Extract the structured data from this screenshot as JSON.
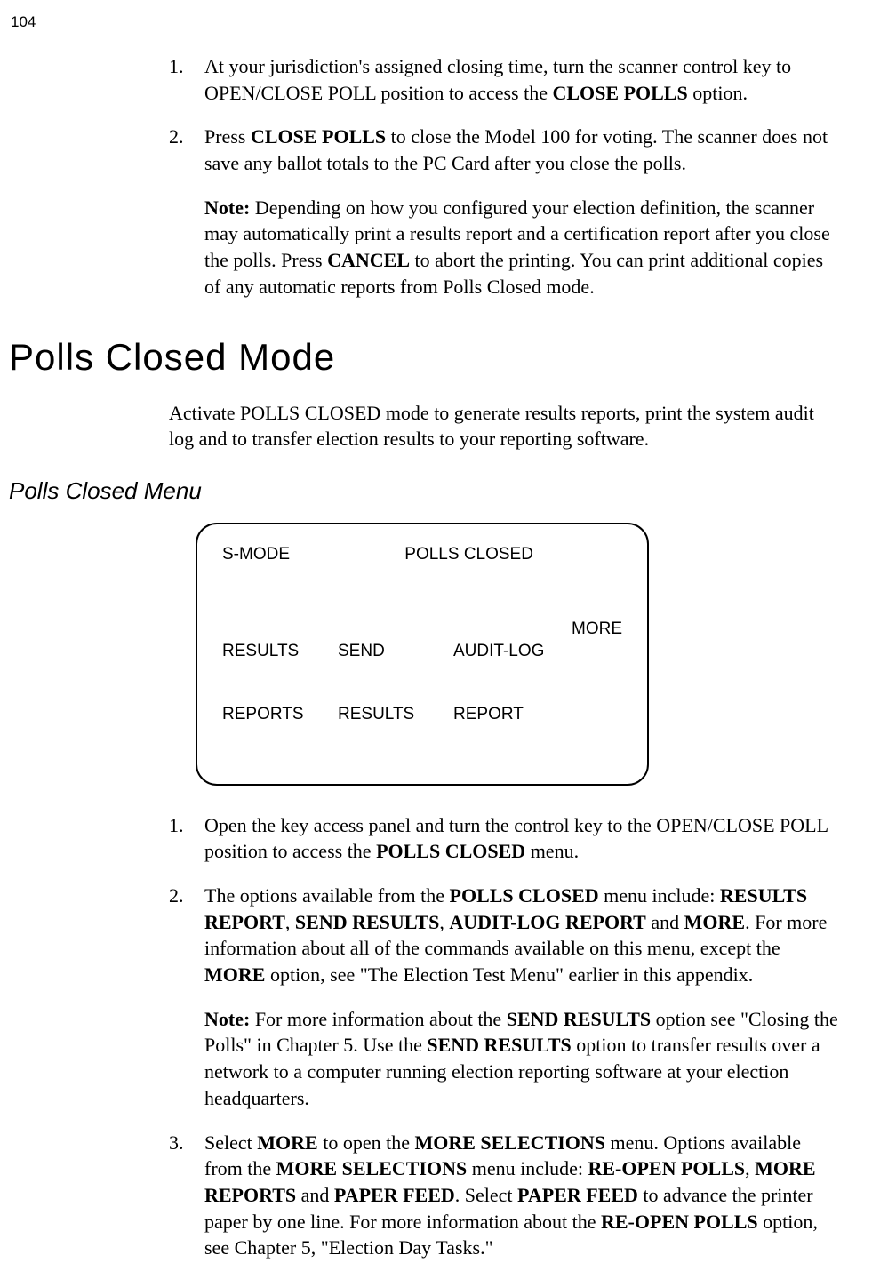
{
  "page_number": "104",
  "list1": {
    "item1": {
      "num": "1.",
      "text_a": "At your jurisdiction's assigned closing time, turn the scanner control key to OPEN/CLOSE POLL position to access the ",
      "bold_a": "CLOSE POLLS",
      "text_b": " option."
    },
    "item2": {
      "num": "2.",
      "text_a": "Press ",
      "bold_a": "CLOSE POLLS",
      "text_b": " to close the Model 100 for voting. The scanner does not save any ballot totals to the PC Card after you close the polls."
    },
    "note1": {
      "label": "Note:",
      "text_a": " Depending on how you configured your election definition, the scanner may automatically print a results report and a certification report after you close the polls. Press ",
      "bold_a": "CANCEL",
      "text_b": " to abort the printing. You can print additional copies of any automatic reports from Polls Closed mode."
    }
  },
  "heading1": "Polls Closed Mode",
  "intro1": "Activate POLLS CLOSED mode to generate results reports, print the system audit log and to transfer election results to your reporting software.",
  "heading2": "Polls Closed Menu",
  "display": {
    "mode": "S-MODE",
    "title": "POLLS CLOSED",
    "col1_l1": "RESULTS",
    "col1_l2": "REPORTS",
    "col2_l1": "SEND",
    "col2_l2": "RESULTS",
    "col3_l1": "AUDIT-LOG",
    "col3_l2": "REPORT",
    "col4": "MORE"
  },
  "list2": {
    "item1": {
      "num": "1.",
      "text_a": "Open the key access panel and turn the control key to the OPEN/CLOSE POLL position to access the ",
      "bold_a": "POLLS CLOSED",
      "text_b": " menu."
    },
    "item2": {
      "num": "2.",
      "text_a": "The options available from the ",
      "bold_a": "POLLS CLOSED",
      "text_b": " menu include: ",
      "bold_b": "RESULTS REPORT",
      "text_c": ", ",
      "bold_c": "SEND RESULTS",
      "text_d": ", ",
      "bold_d": "AUDIT-LOG REPORT",
      "text_e": " and ",
      "bold_e": "MORE",
      "text_f": ". For more information about all of the commands available on this menu, except the ",
      "bold_f": "MORE",
      "text_g": " option, see \"The Election Test Menu\" earlier in this appendix."
    },
    "note2": {
      "label": "Note:",
      "text_a": " For more information about the ",
      "bold_a": "SEND RESULTS",
      "text_b": " option see \"Closing the Polls\" in Chapter 5. Use the ",
      "bold_b": "SEND RESULTS",
      "text_c": " option to transfer results over a network to a computer running election reporting software at your election headquarters."
    },
    "item3": {
      "num": "3.",
      "text_a": "Select ",
      "bold_a": "MORE",
      "text_b": " to open the ",
      "bold_b": "MORE SELECTIONS",
      "text_c": " menu. Options available from the ",
      "bold_c": "MORE SELECTIONS",
      "text_d": " menu include: ",
      "bold_d": "RE-OPEN POLLS",
      "text_e": ", ",
      "bold_e": "MORE REPORTS",
      "text_f": " and ",
      "bold_f": "PAPER FEED",
      "text_g": ". Select ",
      "bold_g": "PAPER FEED",
      "text_h": " to advance the printer paper by one line. For more information about the ",
      "bold_h": "RE-OPEN POLLS",
      "text_i": " option, see Chapter 5, \"Election Day Tasks.\""
    }
  }
}
